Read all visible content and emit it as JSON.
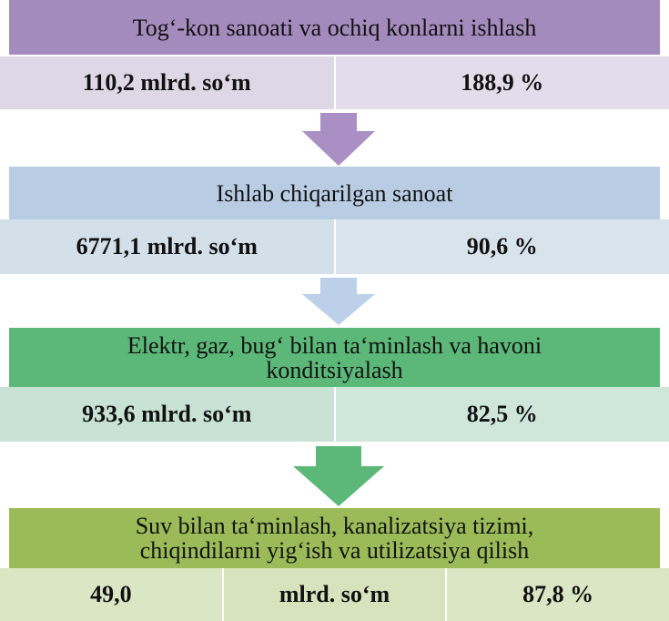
{
  "blocks": [
    {
      "title": [
        "Tog‘-kon sanoati va ochiq konlarni ishlash"
      ],
      "cells": [
        "110,2 mlrd. so‘m",
        "188,9 %"
      ]
    },
    {
      "title": [
        "Ishlab chiqarilgan sanoat"
      ],
      "cells": [
        "6771,1 mlrd. so‘m",
        "90,6 %"
      ]
    },
    {
      "title": [
        "Elektr, gaz, bug‘ bilan ta‘minlash va havoni",
        "konditsiyalash"
      ],
      "cells": [
        "933,6 mlrd. so‘m",
        "82,5 %"
      ]
    },
    {
      "title": [
        "Suv bilan ta‘minlash, kanalizatsiya tizimi,",
        "chiqindilarni yig‘ish va utilizatsiya qilish"
      ],
      "cells": [
        "49,0",
        "mlrd. so‘m",
        "87,8 %"
      ]
    }
  ]
}
